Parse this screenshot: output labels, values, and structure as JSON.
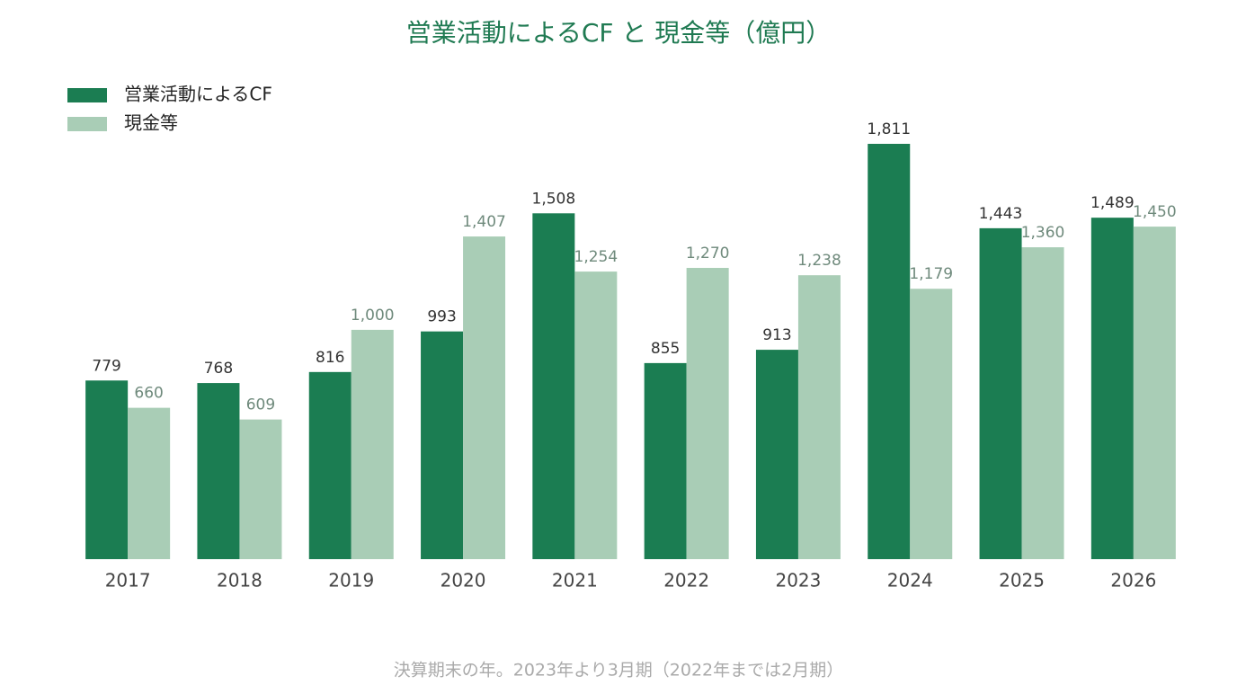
{
  "chart_data": {
    "type": "bar",
    "title": "営業活動によるCF と 現金等（億円）",
    "categories": [
      "2017",
      "2018",
      "2019",
      "2020",
      "2021",
      "2022",
      "2023",
      "2024",
      "2025",
      "2026"
    ],
    "series": [
      {
        "name": "営業活動によるCF",
        "color": "#1b7d52",
        "values": [
          779,
          768,
          816,
          993,
          1508,
          855,
          913,
          1811,
          1443,
          1489
        ],
        "value_labels": [
          "779",
          "768",
          "816",
          "993",
          "1,508",
          "855",
          "913",
          "1,811",
          "1,443",
          "1,489"
        ]
      },
      {
        "name": "現金等",
        "color": "#a9cdb6",
        "values": [
          660,
          609,
          1000,
          1407,
          1254,
          1270,
          1238,
          1179,
          1360,
          1450
        ],
        "value_labels": [
          "660",
          "609",
          "1,000",
          "1,407",
          "1,254",
          "1,270",
          "1,238",
          "1,179",
          "1,360",
          "1,450"
        ]
      }
    ],
    "footnote": "決算期末の年。2023年より3月期（2022年までは2月期）"
  }
}
